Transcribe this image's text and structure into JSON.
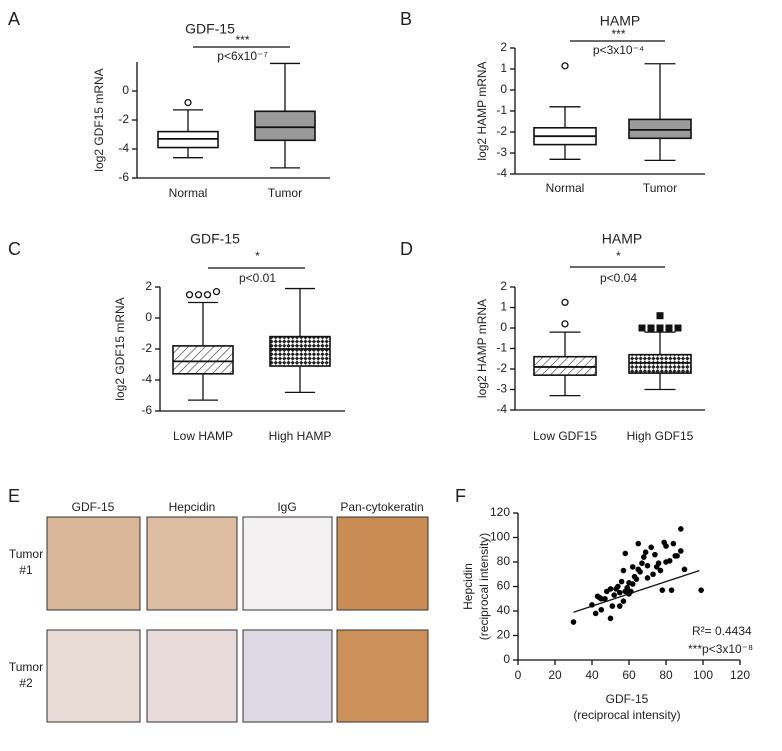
{
  "chart_data": [
    {
      "type": "box",
      "panel": "A",
      "title": "GDF-15",
      "ylabel": "log2 GDF15 mRNA",
      "ylim": [
        -6,
        2
      ],
      "yticks": [
        -6,
        -4,
        -2,
        0
      ],
      "categories": [
        "Normal",
        "Tumor"
      ],
      "fills": [
        "#ffffff",
        "#9a9a9a"
      ],
      "marker": "circle",
      "boxes": [
        {
          "min": -4.6,
          "q1": -3.9,
          "median": -3.3,
          "q3": -2.8,
          "max": -1.3,
          "outliers": [
            -0.8
          ]
        },
        {
          "min": -5.3,
          "q1": -3.4,
          "median": -2.5,
          "q3": -1.4,
          "max": 1.9,
          "outliers": []
        }
      ],
      "significance": "***",
      "p_text": "p<6x10⁻⁷"
    },
    {
      "type": "box",
      "panel": "B",
      "title": "HAMP",
      "ylabel": "log2 HAMP mRNA",
      "ylim": [
        -4,
        2
      ],
      "yticks": [
        -4,
        -3,
        -2,
        -1,
        0,
        1,
        2
      ],
      "categories": [
        "Normal",
        "Tumor"
      ],
      "fills": [
        "#ffffff",
        "#9a9a9a"
      ],
      "marker": "circle",
      "boxes": [
        {
          "min": -3.3,
          "q1": -2.6,
          "median": -2.2,
          "q3": -1.8,
          "max": -0.8,
          "outliers": [
            1.15
          ]
        },
        {
          "min": -3.35,
          "q1": -2.3,
          "median": -1.9,
          "q3": -1.4,
          "max": 1.25,
          "outliers": []
        }
      ],
      "significance": "***",
      "p_text": "p<3x10⁻⁴"
    },
    {
      "type": "box",
      "panel": "C",
      "title": "GDF-15",
      "ylabel": "log2 GDF15 mRNA",
      "ylim": [
        -6,
        2
      ],
      "yticks": [
        -6,
        -4,
        -2,
        0,
        2
      ],
      "categories": [
        "Low HAMP",
        "High HAMP"
      ],
      "fills": [
        "diagonal",
        "crosshatch"
      ],
      "marker": "circle",
      "boxes": [
        {
          "min": -5.3,
          "q1": -3.6,
          "median": -2.8,
          "q3": -1.8,
          "max": 1.0,
          "outliers": [
            1.5,
            1.5,
            1.5,
            1.7
          ]
        },
        {
          "min": -4.8,
          "q1": -3.1,
          "median": -2.0,
          "q3": -1.2,
          "max": 1.9,
          "outliers": []
        }
      ],
      "significance": "*",
      "p_text": "p<0.01"
    },
    {
      "type": "box",
      "panel": "D",
      "title": "HAMP",
      "ylabel": "log2 HAMP mRNA",
      "ylim": [
        -4,
        2
      ],
      "yticks": [
        -4,
        -3,
        -2,
        -1,
        0,
        1,
        2
      ],
      "categories": [
        "Low GDF15",
        "High GDF15"
      ],
      "fills": [
        "diagonal",
        "crosshatch"
      ],
      "marker": "mixed",
      "boxes": [
        {
          "min": -3.3,
          "q1": -2.3,
          "median": -1.9,
          "q3": -1.4,
          "max": -0.2,
          "outliers": [
            0.2,
            1.25
          ]
        },
        {
          "min": -3.0,
          "q1": -2.2,
          "median": -1.7,
          "q3": -1.3,
          "max": -0.2,
          "outliers": [
            0,
            0,
            0,
            0,
            0,
            0.6
          ]
        }
      ],
      "significance": "*",
      "p_text": "p<0.04"
    },
    {
      "type": "scatter",
      "panel": "F",
      "xlabel": [
        "GDF-15",
        "(reciprocal intensity)"
      ],
      "ylabel": [
        "Hepcidin",
        "(reciprocal intensity)"
      ],
      "xlim": [
        0,
        120
      ],
      "ylim": [
        0,
        120
      ],
      "xticks": [
        0,
        20,
        40,
        60,
        80,
        100,
        120
      ],
      "yticks": [
        0,
        20,
        40,
        60,
        80,
        100,
        120
      ],
      "color": "#000000",
      "x": [
        30,
        40,
        42,
        43,
        44,
        45,
        45,
        47,
        48,
        50,
        50,
        51,
        52,
        53,
        54,
        55,
        55,
        56,
        57,
        57,
        58,
        58,
        59,
        60,
        60,
        61,
        62,
        62,
        63,
        64,
        65,
        65,
        66,
        67,
        68,
        69,
        70,
        70,
        72,
        73,
        74,
        75,
        76,
        77,
        78,
        79,
        80,
        80,
        82,
        83,
        84,
        85,
        86,
        88,
        88,
        90,
        99
      ],
      "y": [
        31,
        45,
        38,
        52,
        51,
        50,
        41,
        50,
        56,
        34,
        58,
        44,
        53,
        58,
        60,
        44,
        55,
        64,
        48,
        73,
        56,
        87,
        59,
        63,
        54,
        56,
        62,
        76,
        68,
        66,
        74,
        95,
        72,
        79,
        84,
        88,
        67,
        77,
        92,
        70,
        86,
        76,
        79,
        73,
        57,
        96,
        93,
        80,
        81,
        57,
        95,
        85,
        85,
        89,
        107,
        74,
        57
      ],
      "trend": {
        "x": [
          30,
          98
        ],
        "y": [
          39,
          73
        ]
      },
      "annotations": [
        "R²= 0.4434",
        "***p<3x10⁻⁸"
      ]
    }
  ],
  "panel_e": {
    "panel": "E",
    "columns": [
      "GDF-15",
      "Hepcidin",
      "IgG",
      "Pan-cytokeratin"
    ],
    "rows": [
      [
        "Tumor",
        "#1"
      ],
      [
        "Tumor",
        "#2"
      ]
    ]
  }
}
